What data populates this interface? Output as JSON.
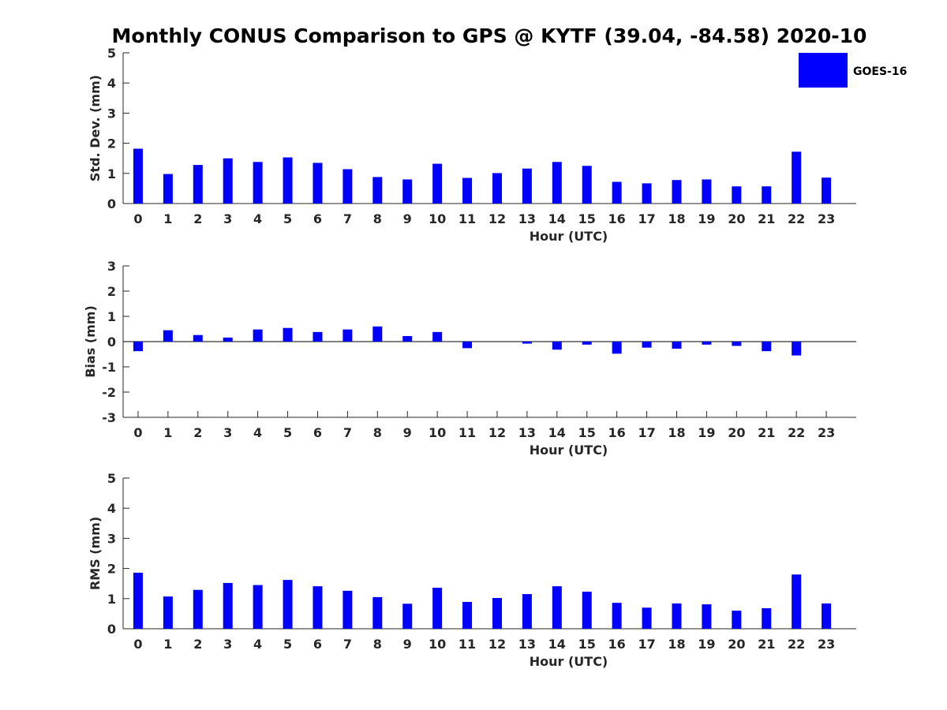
{
  "chart_data": {
    "type": "bar",
    "title": "Monthly CONUS Comparison to GPS @ KYTF (39.04, -84.58) 2020-10",
    "legend": {
      "placement": "top-right",
      "entries": [
        {
          "name": "GOES-16",
          "color": "#0000ff"
        }
      ]
    },
    "categories": [
      "0",
      "1",
      "2",
      "3",
      "4",
      "5",
      "6",
      "7",
      "8",
      "9",
      "10",
      "11",
      "12",
      "13",
      "14",
      "15",
      "16",
      "17",
      "18",
      "19",
      "20",
      "21",
      "22",
      "23"
    ],
    "panels": [
      {
        "id": "std",
        "ylabel": "Std. Dev. (mm)",
        "xlabel": "Hour (UTC)",
        "ylim": [
          0,
          5
        ],
        "yticks": [
          "0",
          "1",
          "2",
          "3",
          "4",
          "5"
        ],
        "series": [
          {
            "name": "GOES-16",
            "values": [
              1.82,
              0.98,
              1.28,
              1.5,
              1.38,
              1.53,
              1.35,
              1.14,
              0.88,
              0.8,
              1.32,
              0.85,
              1.01,
              1.16,
              1.38,
              1.25,
              0.72,
              0.67,
              0.78,
              0.8,
              0.57,
              0.57,
              1.72,
              0.86
            ]
          }
        ]
      },
      {
        "id": "bias",
        "ylabel": "Bias (mm)",
        "xlabel": "Hour (UTC)",
        "ylim": [
          -3,
          3
        ],
        "yticks": [
          "-3",
          "-2",
          "-1",
          "0",
          "1",
          "2",
          "3"
        ],
        "zero_line": true,
        "series": [
          {
            "name": "GOES-16",
            "values": [
              -0.38,
              0.45,
              0.26,
              0.16,
              0.48,
              0.54,
              0.38,
              0.48,
              0.6,
              0.22,
              0.38,
              -0.26,
              0.0,
              -0.08,
              -0.32,
              -0.12,
              -0.48,
              -0.24,
              -0.28,
              -0.12,
              -0.17,
              -0.38,
              -0.55,
              0.0
            ]
          }
        ]
      },
      {
        "id": "rms",
        "ylabel": "RMS (mm)",
        "xlabel": "Hour (UTC)",
        "ylim": [
          0,
          5
        ],
        "yticks": [
          "0",
          "1",
          "2",
          "3",
          "4",
          "5"
        ],
        "series": [
          {
            "name": "GOES-16",
            "values": [
              1.86,
              1.07,
              1.29,
              1.52,
              1.45,
              1.62,
              1.41,
              1.26,
              1.05,
              0.83,
              1.36,
              0.89,
              1.02,
              1.15,
              1.41,
              1.23,
              0.86,
              0.7,
              0.84,
              0.81,
              0.6,
              0.68,
              1.8,
              0.84
            ]
          }
        ]
      }
    ]
  }
}
